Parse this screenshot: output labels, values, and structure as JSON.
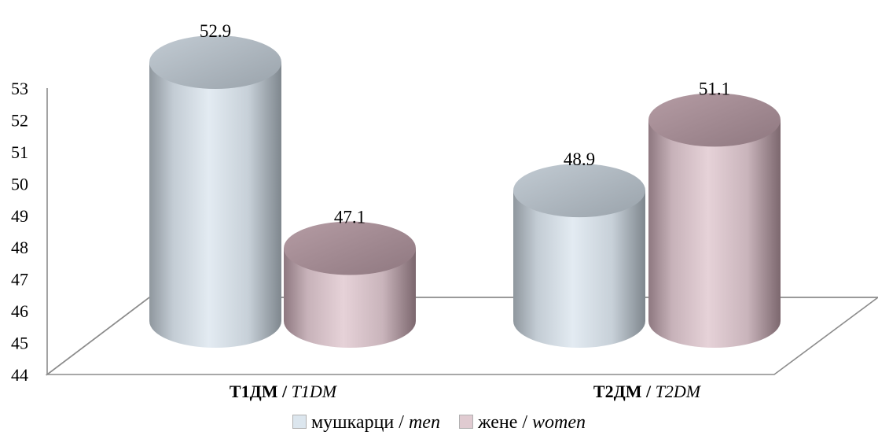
{
  "chart_data": {
    "type": "bar",
    "categories": [
      {
        "bold": "Т1ДМ",
        "sep": " / ",
        "italic": "T1DM"
      },
      {
        "bold": "Т2ДМ",
        "sep": " / ",
        "italic": "T2DM"
      }
    ],
    "series": [
      {
        "name_main": "мушкарци",
        "name_sep": " / ",
        "name_alt": "men",
        "values": [
          52.9,
          48.9
        ],
        "value_labels": [
          "52.9",
          "48.9"
        ],
        "color": "#dce6ee",
        "top_color": "#b3bdc6"
      },
      {
        "name_main": "жене",
        "name_sep": " / ",
        "name_alt": "women",
        "values": [
          47.1,
          51.1
        ],
        "value_labels": [
          "47.1",
          "51.1"
        ],
        "color": "#e0cbd1",
        "top_color": "#a88c94"
      }
    ],
    "yticks": [
      "44",
      "45",
      "46",
      "47",
      "48",
      "49",
      "50",
      "51",
      "52",
      "53"
    ],
    "ylim": [
      44,
      53
    ],
    "grid": false,
    "legend_position": "bottom",
    "style": "3d-cylinder"
  }
}
